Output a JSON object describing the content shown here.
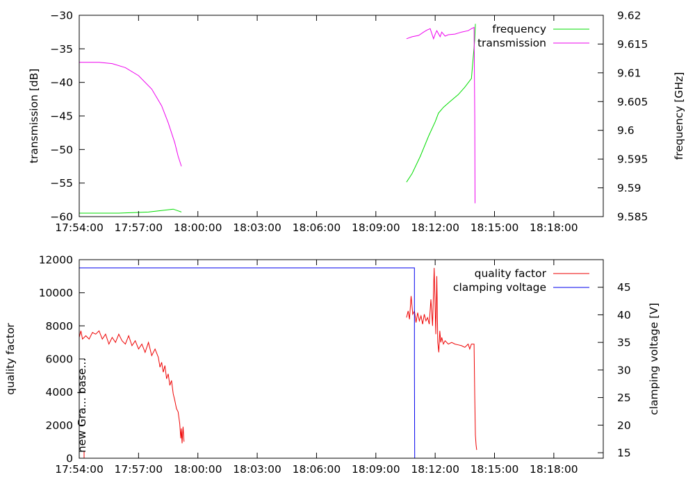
{
  "chart_data": [
    {
      "type": "line",
      "xlabel": "",
      "ylabel": "transmission [dB]",
      "y2label": "frequency [GHz]",
      "xlim": [
        "17:54:00",
        "18:20:30"
      ],
      "x_ticks": [
        "17:54:00",
        "17:57:00",
        "18:00:00",
        "18:03:00",
        "18:06:00",
        "18:09:00",
        "18:12:00",
        "18:15:00",
        "18:18:00"
      ],
      "ylim": [
        -60,
        -30
      ],
      "y_ticks": [
        -30,
        -35,
        -40,
        -45,
        -50,
        -55,
        -60
      ],
      "y2lim": [
        9.585,
        9.62
      ],
      "y2_ticks": [
        9.62,
        9.615,
        9.61,
        9.605,
        9.6,
        9.595,
        9.59,
        9.585
      ],
      "legend_position": "top-right",
      "grid": false,
      "series": [
        {
          "name": "frequency",
          "axis": "right",
          "color": "#00dd00",
          "segments": [
            [
              [
                "17:54:00",
                9.5856
              ],
              [
                "17:56:00",
                9.5856
              ],
              [
                "17:57:30",
                9.5858
              ],
              [
                "17:58:30",
                9.5862
              ],
              [
                "17:58:45",
                9.5863
              ],
              [
                "17:59:00",
                9.586
              ],
              [
                "17:59:10",
                9.5858
              ]
            ],
            [
              [
                "18:10:33",
                9.591
              ],
              [
                "18:10:50",
                9.5925
              ],
              [
                "18:11:15",
                9.5955
              ],
              [
                "18:11:40",
                9.599
              ],
              [
                "18:12:00",
                9.6015
              ],
              [
                "18:12:10",
                9.603
              ],
              [
                "18:12:25",
                9.604
              ],
              [
                "18:12:45",
                9.605
              ],
              [
                "18:13:10",
                9.6062
              ],
              [
                "18:13:30",
                9.6075
              ],
              [
                "18:13:50",
                9.609
              ],
              [
                "18:14:00",
                9.6158
              ],
              [
                "18:14:02",
                9.6185
              ]
            ]
          ]
        },
        {
          "name": "transmission",
          "axis": "left",
          "color": "#ee00ee",
          "segments": [
            [
              [
                "17:54:00",
                -37.0
              ],
              [
                "17:55:00",
                -37.0
              ],
              [
                "17:55:40",
                -37.2
              ],
              [
                "17:56:20",
                -37.8
              ],
              [
                "17:57:00",
                -39.0
              ],
              [
                "17:57:40",
                -41.0
              ],
              [
                "17:58:10",
                -43.5
              ],
              [
                "17:58:30",
                -46.0
              ],
              [
                "17:58:50",
                -49.0
              ],
              [
                "17:59:00",
                -51.0
              ],
              [
                "17:59:10",
                -52.5
              ]
            ],
            [
              [
                "18:10:33",
                -33.5
              ],
              [
                "18:10:50",
                -33.2
              ],
              [
                "18:11:10",
                -33.0
              ],
              [
                "18:11:25",
                -32.5
              ],
              [
                "18:11:35",
                -32.2
              ],
              [
                "18:11:45",
                -32.0
              ],
              [
                "18:11:55",
                -33.5
              ],
              [
                "18:12:00",
                -32.8
              ],
              [
                "18:12:05",
                -32.3
              ],
              [
                "18:12:15",
                -33.2
              ],
              [
                "18:12:20",
                -32.5
              ],
              [
                "18:12:30",
                -33.1
              ],
              [
                "18:12:40",
                -32.9
              ],
              [
                "18:13:00",
                -32.8
              ],
              [
                "18:13:20",
                -32.5
              ],
              [
                "18:13:40",
                -32.3
              ],
              [
                "18:13:50",
                -32.0
              ],
              [
                "18:13:58",
                -31.8
              ],
              [
                "18:14:00",
                -45.0
              ],
              [
                "18:14:01",
                -58.0
              ]
            ]
          ]
        }
      ]
    },
    {
      "type": "line",
      "xlabel": "",
      "ylabel": "quality factor",
      "y2label": "clamping voltage [V]",
      "xlim": [
        "17:54:00",
        "18:20:30"
      ],
      "x_ticks": [
        "17:54:00",
        "17:57:00",
        "18:00:00",
        "18:03:00",
        "18:06:00",
        "18:09:00",
        "18:12:00",
        "18:15:00",
        "18:18:00"
      ],
      "ylim": [
        0,
        12000
      ],
      "y_ticks": [
        12000,
        10000,
        8000,
        6000,
        4000,
        2000,
        0
      ],
      "y2lim": [
        14,
        50
      ],
      "y2_ticks": [
        45,
        40,
        35,
        30,
        25,
        20,
        15
      ],
      "legend_position": "top-right",
      "grid": false,
      "annotation": "new Gra... base...",
      "series": [
        {
          "name": "quality factor",
          "axis": "left",
          "color": "#ee0000",
          "segments": [
            [
              [
                "17:54:00",
                7300
              ],
              [
                "17:54:05",
                7700
              ],
              [
                "17:54:10",
                7200
              ],
              [
                "17:54:20",
                7400
              ],
              [
                "17:54:30",
                7200
              ],
              [
                "17:54:40",
                7600
              ],
              [
                "17:54:50",
                7500
              ],
              [
                "17:55:00",
                7700
              ],
              [
                "17:55:10",
                7200
              ],
              [
                "17:55:20",
                7500
              ],
              [
                "17:55:30",
                6900
              ],
              [
                "17:55:40",
                7300
              ],
              [
                "17:55:50",
                7000
              ],
              [
                "17:56:00",
                7500
              ],
              [
                "17:56:10",
                7100
              ],
              [
                "17:56:20",
                6900
              ],
              [
                "17:56:30",
                7400
              ],
              [
                "17:56:40",
                6800
              ],
              [
                "17:56:50",
                7100
              ],
              [
                "17:57:00",
                6600
              ],
              [
                "17:57:10",
                6900
              ],
              [
                "17:57:20",
                6400
              ],
              [
                "17:57:30",
                7000
              ],
              [
                "17:57:40",
                6200
              ],
              [
                "17:57:50",
                6600
              ],
              [
                "17:58:00",
                6100
              ],
              [
                "17:58:05",
                5500
              ],
              [
                "17:58:10",
                5800
              ],
              [
                "17:58:15",
                5200
              ],
              [
                "17:58:20",
                5600
              ],
              [
                "17:58:25",
                4800
              ],
              [
                "17:58:30",
                5100
              ],
              [
                "17:58:35",
                4400
              ],
              [
                "17:58:40",
                4700
              ],
              [
                "17:58:45",
                3900
              ],
              [
                "17:58:50",
                3500
              ],
              [
                "17:58:55",
                3000
              ],
              [
                "17:59:00",
                2800
              ],
              [
                "17:59:05",
                2100
              ],
              [
                "17:59:08",
                1200
              ],
              [
                "17:59:10",
                1800
              ],
              [
                "17:59:12",
                900
              ],
              [
                "17:59:15",
                1900
              ],
              [
                "17:59:18",
                1000
              ]
            ],
            [
              [
                "18:10:33",
                8500
              ],
              [
                "18:10:38",
                8900
              ],
              [
                "18:10:42",
                8400
              ],
              [
                "18:10:47",
                9800
              ],
              [
                "18:10:52",
                8700
              ],
              [
                "18:10:57",
                8900
              ],
              [
                "18:11:02",
                8200
              ],
              [
                "18:11:07",
                8800
              ],
              [
                "18:11:12",
                8300
              ],
              [
                "18:11:17",
                8600
              ],
              [
                "18:11:22",
                8100
              ],
              [
                "18:11:27",
                8700
              ],
              [
                "18:11:32",
                8300
              ],
              [
                "18:11:37",
                8500
              ],
              [
                "18:11:42",
                8100
              ],
              [
                "18:11:47",
                9600
              ],
              [
                "18:11:52",
                8000
              ],
              [
                "18:11:57",
                11500
              ],
              [
                "18:12:02",
                7500
              ],
              [
                "18:12:05",
                11000
              ],
              [
                "18:12:08",
                7000
              ],
              [
                "18:12:11",
                6400
              ],
              [
                "18:12:14",
                7700
              ],
              [
                "18:12:17",
                7000
              ],
              [
                "18:12:20",
                7300
              ],
              [
                "18:12:25",
                6900
              ],
              [
                "18:12:30",
                7100
              ],
              [
                "18:12:40",
                6900
              ],
              [
                "18:12:50",
                7000
              ],
              [
                "18:13:00",
                6900
              ],
              [
                "18:13:10",
                6850
              ],
              [
                "18:13:20",
                6800
              ],
              [
                "18:13:30",
                6700
              ],
              [
                "18:13:40",
                6900
              ],
              [
                "18:13:45",
                6600
              ],
              [
                "18:13:50",
                6900
              ],
              [
                "18:13:58",
                6900
              ],
              [
                "18:14:00",
                3700
              ],
              [
                "18:14:02",
                1400
              ],
              [
                "18:14:04",
                800
              ],
              [
                "18:14:06",
                500
              ]
            ]
          ]
        },
        {
          "name": "clamping voltage",
          "axis": "right",
          "color": "#0000ee",
          "segments": [
            [
              [
                "17:54:00",
                48.5
              ],
              [
                "18:10:57",
                48.5
              ],
              [
                "18:10:57",
                30.0
              ],
              [
                "18:10:58",
                14.0
              ]
            ]
          ]
        }
      ]
    }
  ]
}
